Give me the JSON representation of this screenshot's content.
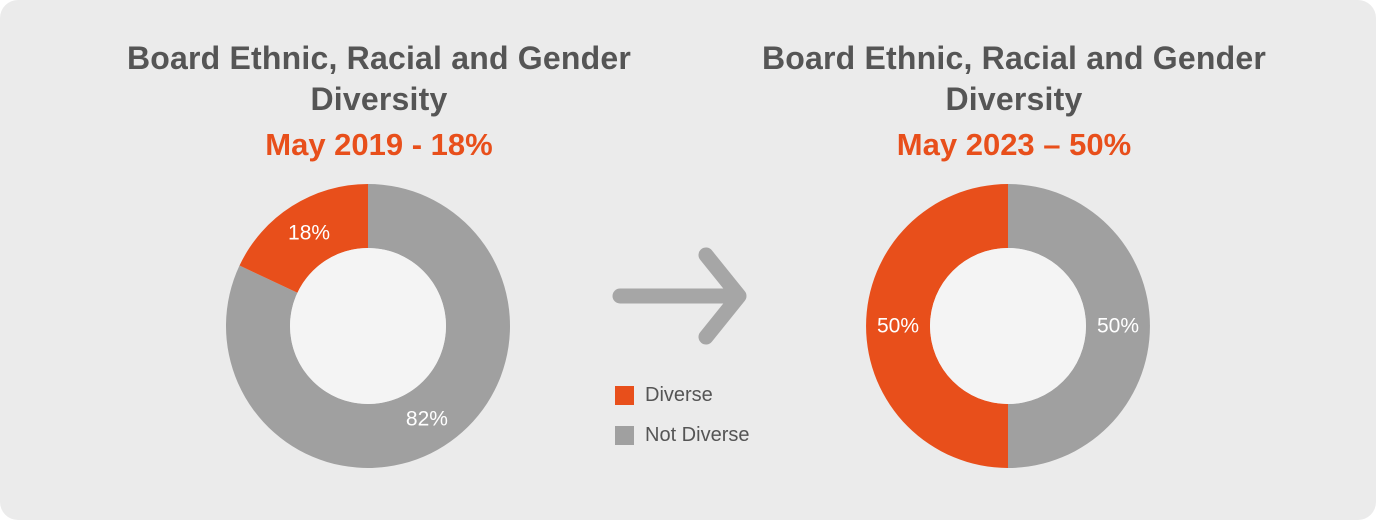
{
  "colors": {
    "diverse": "#e84f1b",
    "not_diverse": "#a0a0a0",
    "hole": "#f4f4f4",
    "title": "#555555",
    "accent": "#e84f1b"
  },
  "legend": {
    "items": [
      {
        "label": "Diverse",
        "color": "#e84f1b"
      },
      {
        "label": "Not Diverse",
        "color": "#a0a0a0"
      }
    ]
  },
  "arrow": {
    "icon": "right-arrow-icon",
    "color": "#a6a6a6"
  },
  "chart_data": [
    {
      "type": "pie",
      "title": "Board Ethnic, Racial and Gender Diversity",
      "subtitle": "May 2019 - 18%",
      "series": [
        {
          "name": "Diverse",
          "value": 18,
          "label": "18%"
        },
        {
          "name": "Not Diverse",
          "value": 82,
          "label": "82%"
        }
      ]
    },
    {
      "type": "pie",
      "title": "Board Ethnic, Racial and Gender Diversity",
      "subtitle": "May 2023 – 50%",
      "series": [
        {
          "name": "Diverse",
          "value": 50,
          "label": "50%"
        },
        {
          "name": "Not Diverse",
          "value": 50,
          "label": "50%"
        }
      ]
    }
  ]
}
